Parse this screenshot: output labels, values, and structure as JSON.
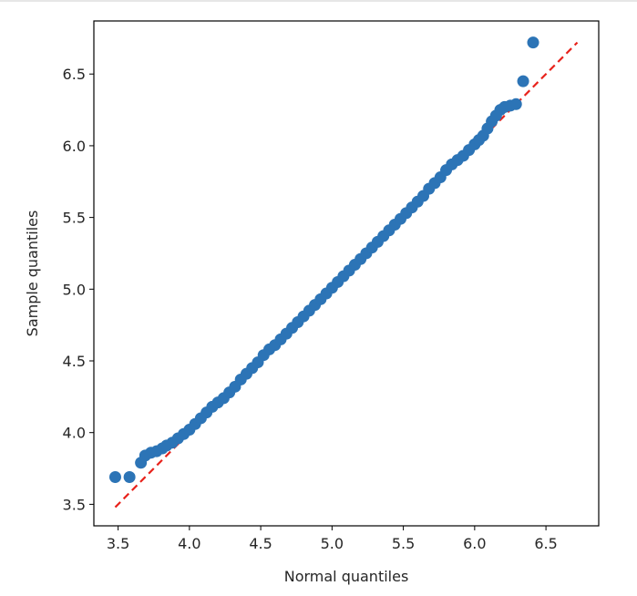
{
  "chart_data": {
    "type": "scatter",
    "title": "",
    "xlabel": "Normal quantiles",
    "ylabel": "Sample quantiles",
    "xlim": [
      3.33,
      6.87
    ],
    "ylim": [
      3.35,
      6.87
    ],
    "x_ticks": [
      3.5,
      4.0,
      4.5,
      5.0,
      5.5,
      6.0,
      6.5
    ],
    "y_ticks": [
      3.5,
      4.0,
      4.5,
      5.0,
      5.5,
      6.0,
      6.5
    ],
    "x_tick_labels": [
      "3.5",
      "4.0",
      "4.5",
      "5.0",
      "5.5",
      "6.0",
      "6.5"
    ],
    "y_tick_labels": [
      "3.5",
      "4.0",
      "4.5",
      "5.0",
      "5.5",
      "6.0",
      "6.5"
    ],
    "grid": false,
    "reference_line": {
      "style": "dashed",
      "color": "#e8221b",
      "x": [
        3.48,
        6.72
      ],
      "y": [
        3.48,
        6.72
      ]
    },
    "series": [
      {
        "name": "samples",
        "color": "#2c74b6",
        "points": [
          [
            3.48,
            3.69
          ],
          [
            3.58,
            3.69
          ],
          [
            3.66,
            3.79
          ],
          [
            3.69,
            3.84
          ],
          [
            3.73,
            3.86
          ],
          [
            3.77,
            3.87
          ],
          [
            3.81,
            3.89
          ],
          [
            3.84,
            3.91
          ],
          [
            3.88,
            3.93
          ],
          [
            3.92,
            3.96
          ],
          [
            3.96,
            3.99
          ],
          [
            4.0,
            4.02
          ],
          [
            4.04,
            4.06
          ],
          [
            4.08,
            4.1
          ],
          [
            4.12,
            4.14
          ],
          [
            4.16,
            4.18
          ],
          [
            4.2,
            4.21
          ],
          [
            4.24,
            4.24
          ],
          [
            4.28,
            4.28
          ],
          [
            4.32,
            4.32
          ],
          [
            4.36,
            4.37
          ],
          [
            4.4,
            4.41
          ],
          [
            4.44,
            4.45
          ],
          [
            4.48,
            4.49
          ],
          [
            4.52,
            4.54
          ],
          [
            4.56,
            4.58
          ],
          [
            4.6,
            4.61
          ],
          [
            4.64,
            4.65
          ],
          [
            4.68,
            4.69
          ],
          [
            4.72,
            4.73
          ],
          [
            4.76,
            4.77
          ],
          [
            4.8,
            4.81
          ],
          [
            4.84,
            4.85
          ],
          [
            4.88,
            4.89
          ],
          [
            4.92,
            4.93
          ],
          [
            4.96,
            4.97
          ],
          [
            5.0,
            5.01
          ],
          [
            5.04,
            5.05
          ],
          [
            5.08,
            5.09
          ],
          [
            5.12,
            5.13
          ],
          [
            5.16,
            5.17
          ],
          [
            5.2,
            5.21
          ],
          [
            5.24,
            5.25
          ],
          [
            5.28,
            5.29
          ],
          [
            5.32,
            5.33
          ],
          [
            5.36,
            5.37
          ],
          [
            5.4,
            5.41
          ],
          [
            5.44,
            5.45
          ],
          [
            5.48,
            5.49
          ],
          [
            5.52,
            5.53
          ],
          [
            5.56,
            5.57
          ],
          [
            5.6,
            5.61
          ],
          [
            5.64,
            5.65
          ],
          [
            5.68,
            5.7
          ],
          [
            5.72,
            5.74
          ],
          [
            5.76,
            5.78
          ],
          [
            5.8,
            5.83
          ],
          [
            5.84,
            5.87
          ],
          [
            5.88,
            5.9
          ],
          [
            5.92,
            5.93
          ],
          [
            5.96,
            5.97
          ],
          [
            6.0,
            6.01
          ],
          [
            6.03,
            6.04
          ],
          [
            6.06,
            6.07
          ],
          [
            6.09,
            6.12
          ],
          [
            6.12,
            6.17
          ],
          [
            6.15,
            6.21
          ],
          [
            6.18,
            6.25
          ],
          [
            6.21,
            6.27
          ],
          [
            6.25,
            6.28
          ],
          [
            6.29,
            6.29
          ],
          [
            6.34,
            6.45
          ],
          [
            6.41,
            6.72
          ]
        ]
      }
    ]
  }
}
